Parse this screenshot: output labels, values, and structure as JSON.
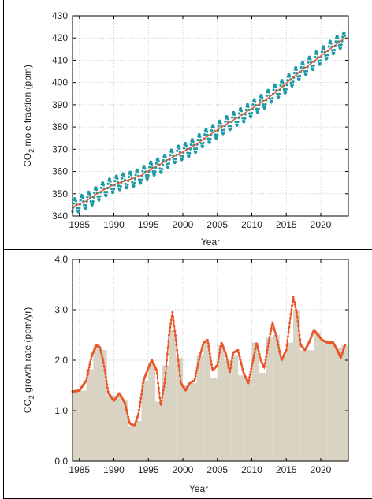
{
  "chart_data": [
    {
      "type": "line",
      "xlabel": "Year",
      "ylabel_main": "CO",
      "ylabel_sub": "2",
      "ylabel_rest": " mole fraction (ppm)",
      "xlim": [
        1984,
        2024
      ],
      "ylim": [
        340,
        430
      ],
      "x_ticks": [
        1985,
        1990,
        1995,
        2000,
        2005,
        2010,
        2015,
        2020
      ],
      "x_tick_labels": [
        "1985",
        "1990",
        "1995",
        "2000",
        "2005",
        "2010",
        "2015",
        "2020"
      ],
      "y_ticks": [
        340,
        350,
        360,
        370,
        380,
        390,
        400,
        410,
        420,
        430
      ],
      "y_tick_labels": [
        "340",
        "350",
        "360",
        "370",
        "380",
        "390",
        "400",
        "410",
        "420",
        "430"
      ],
      "grid": true,
      "series": [
        {
          "style": "monthly-points",
          "color": "#1e9aa6",
          "x": [
            1984,
            1985,
            1986,
            1987,
            1988,
            1989,
            1990,
            1991,
            1992,
            1993,
            1994,
            1995,
            1996,
            1997,
            1998,
            1999,
            2000,
            2001,
            2002,
            2003,
            2004,
            2005,
            2006,
            2007,
            2008,
            2009,
            2010,
            2011,
            2012,
            2013,
            2014,
            2015,
            2016,
            2017,
            2018,
            2019,
            2020,
            2021,
            2022,
            2023
          ],
          "y": [
            344.0,
            345.5,
            346.8,
            348.6,
            350.9,
            352.8,
            354.1,
            355.4,
            356.1,
            356.8,
            358.3,
            360.3,
            362.0,
            363.1,
            365.6,
            367.7,
            368.8,
            370.3,
            372.3,
            374.9,
            376.7,
            378.6,
            380.7,
            382.5,
            384.4,
            385.9,
            388.3,
            390.2,
            392.2,
            395.0,
            396.9,
            399.0,
            402.4,
            405.0,
            407.2,
            409.6,
            411.9,
            414.4,
            416.6,
            419.0
          ],
          "seasonal_amplitude": 3.5
        },
        {
          "style": "trend-line",
          "color": "#e8562a",
          "x": [
            1984,
            1986,
            1988,
            1990,
            1992,
            1994,
            1996,
            1998,
            2000,
            2002,
            2004,
            2006,
            2008,
            2010,
            2012,
            2014,
            2016,
            2018,
            2020,
            2022,
            2023.5
          ],
          "y": [
            344.0,
            346.8,
            350.9,
            354.1,
            356.1,
            358.3,
            362.0,
            365.6,
            368.8,
            372.3,
            376.7,
            380.7,
            384.4,
            388.3,
            392.2,
            396.9,
            402.4,
            407.2,
            411.9,
            416.6,
            420.0
          ]
        }
      ]
    },
    {
      "type": "bar",
      "xlabel": "Year",
      "ylabel_main": "CO",
      "ylabel_sub": "2",
      "ylabel_rest": " growth rate (ppm/yr)",
      "xlim": [
        1984,
        2024
      ],
      "ylim": [
        0,
        4
      ],
      "x_ticks": [
        1985,
        1990,
        1995,
        2000,
        2005,
        2010,
        2015,
        2020
      ],
      "x_tick_labels": [
        "1985",
        "1990",
        "1995",
        "2000",
        "2005",
        "2010",
        "2015",
        "2020"
      ],
      "y_ticks": [
        0,
        1,
        2,
        3,
        4
      ],
      "y_tick_labels": [
        "0.0",
        "1.0",
        "2.0",
        "3.0",
        "4.0"
      ],
      "grid": true,
      "bar_color": "#d8d3c2",
      "years": [
        1984,
        1985,
        1986,
        1987,
        1988,
        1989,
        1990,
        1991,
        1992,
        1993,
        1994,
        1995,
        1996,
        1997,
        1998,
        1999,
        2000,
        2001,
        2002,
        2003,
        2004,
        2005,
        2006,
        2007,
        2008,
        2009,
        2010,
        2011,
        2012,
        2013,
        2014,
        2015,
        2016,
        2017,
        2018,
        2019,
        2020,
        2021,
        2022,
        2023
      ],
      "values": [
        1.38,
        1.4,
        1.82,
        2.3,
        2.2,
        1.3,
        1.3,
        1.2,
        0.7,
        0.8,
        1.6,
        1.95,
        1.18,
        1.9,
        2.6,
        2.05,
        1.5,
        1.55,
        2.1,
        2.35,
        1.65,
        2.3,
        2.0,
        2.1,
        1.7,
        1.62,
        2.35,
        1.75,
        2.45,
        2.5,
        2.1,
        2.35,
        3.0,
        2.2,
        2.2,
        2.55,
        2.4,
        2.35,
        2.25,
        2.3
      ],
      "series": [
        {
          "style": "smoothed-line-with-points",
          "color": "#e8562a",
          "x": [
            1984.0,
            1985.0,
            1986.0,
            1986.8,
            1987.5,
            1988.0,
            1988.5,
            1989.2,
            1990.0,
            1990.8,
            1991.6,
            1992.3,
            1993.0,
            1993.6,
            1994.3,
            1995.0,
            1995.5,
            1996.2,
            1996.8,
            1997.4,
            1998.0,
            1998.5,
            1999.0,
            1999.7,
            2000.4,
            2001.0,
            2001.7,
            2002.4,
            2003.0,
            2003.6,
            2004.3,
            2005.0,
            2005.6,
            2006.3,
            2006.8,
            2007.3,
            2008.0,
            2008.8,
            2009.5,
            2010.1,
            2010.7,
            2011.3,
            2011.8,
            2012.5,
            2013.0,
            2013.6,
            2014.3,
            2015.0,
            2015.6,
            2016.0,
            2016.5,
            2017.1,
            2017.7,
            2018.3,
            2019.0,
            2019.6,
            2020.2,
            2021.0,
            2021.8,
            2022.4,
            2022.9,
            2023.5
          ],
          "y": [
            1.38,
            1.4,
            1.6,
            2.1,
            2.3,
            2.25,
            1.95,
            1.35,
            1.2,
            1.35,
            1.15,
            0.75,
            0.7,
            0.95,
            1.6,
            1.85,
            2.0,
            1.8,
            1.1,
            1.6,
            2.5,
            2.95,
            2.4,
            1.55,
            1.4,
            1.55,
            1.6,
            2.05,
            2.35,
            2.4,
            1.8,
            1.9,
            2.35,
            2.1,
            1.75,
            2.15,
            2.2,
            1.75,
            1.55,
            1.95,
            2.35,
            2.0,
            1.85,
            2.4,
            2.75,
            2.45,
            2.0,
            2.2,
            2.85,
            3.25,
            2.95,
            2.3,
            2.2,
            2.35,
            2.6,
            2.5,
            2.4,
            2.35,
            2.35,
            2.2,
            2.05,
            2.3
          ]
        }
      ]
    }
  ]
}
